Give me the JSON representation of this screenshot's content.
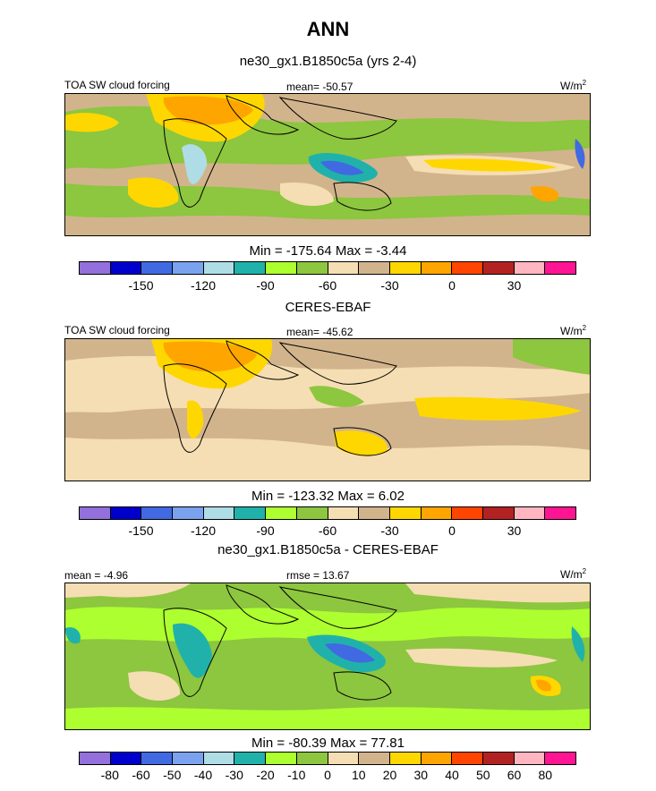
{
  "title": "ANN",
  "palette": [
    "#9370db",
    "#0000cd",
    "#4169e1",
    "#7aa2ee",
    "#afdde6",
    "#20b2aa",
    "#adff2f",
    "#8dc63f",
    "#f5deb3",
    "#d2b48c",
    "#ffd700",
    "#ffa500",
    "#ff4500",
    "#b22222",
    "#ffb6c1",
    "#ff1493"
  ],
  "panels": [
    {
      "header": "ne30_gx1.B1850c5a (yrs 2-4)",
      "left_label": "TOA SW cloud forcing",
      "mid_label": "mean= -50.57",
      "unit": "W/m",
      "unit_sup": "2",
      "minmax": "Min = -175.64 Max =  -3.44",
      "ticks": [
        "-150",
        "-120",
        "-90",
        "-60",
        "-30",
        "0",
        "30"
      ]
    },
    {
      "header": "CERES-EBAF",
      "left_label": "TOA SW cloud forcing",
      "mid_label": "mean= -45.62",
      "unit": "W/m",
      "unit_sup": "2",
      "minmax": "Min = -123.32 Max =   6.02",
      "ticks": [
        "-150",
        "-120",
        "-90",
        "-60",
        "-30",
        "0",
        "30"
      ]
    },
    {
      "header": "ne30_gx1.B1850c5a - CERES-EBAF",
      "left_label": "mean =  -4.96",
      "mid_label": "rmse =  13.67",
      "unit": "W/m",
      "unit_sup": "2",
      "minmax": "Min = -80.39 Max =  77.81",
      "ticks": [
        "-80",
        "-60",
        "-50",
        "-40",
        "-30",
        "-20",
        "-10",
        "0",
        "10",
        "20",
        "30",
        "40",
        "50",
        "60",
        "80"
      ]
    }
  ]
}
